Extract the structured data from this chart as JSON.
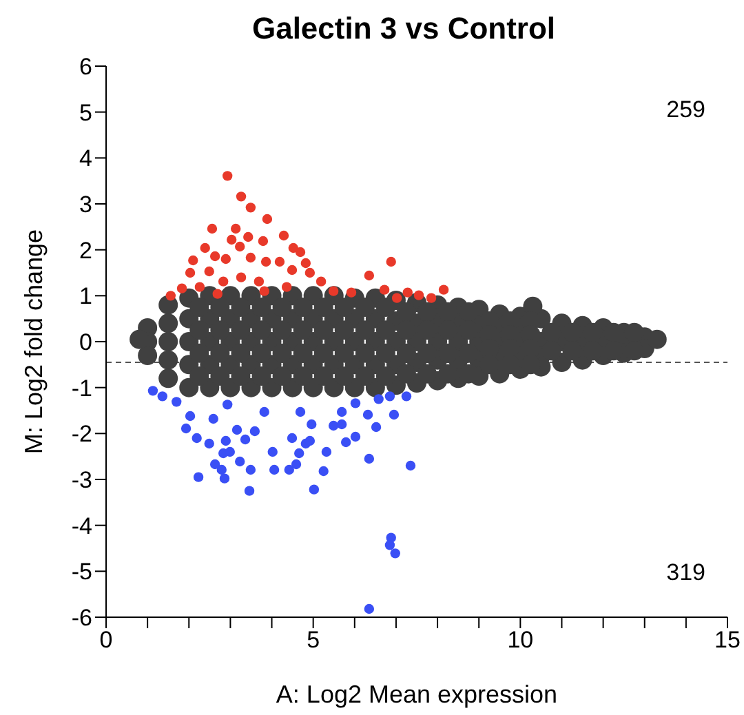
{
  "chart_data": {
    "type": "scatter",
    "title": "Galectin 3 vs Control",
    "xlabel": "A: Log2 Mean expression",
    "ylabel": "M: Log2 fold change",
    "xlim": [
      0,
      15
    ],
    "xticks": [
      0,
      {
        "value": 1,
        "label": null
      },
      {
        "value": 2,
        "label": null
      },
      {
        "value": 3,
        "label": null
      },
      {
        "value": 4,
        "label": null
      },
      5,
      {
        "value": 6,
        "label": null
      },
      {
        "value": 7,
        "label": null
      },
      {
        "value": 8,
        "label": null
      },
      {
        "value": 9,
        "label": null
      },
      10,
      {
        "value": 11,
        "label": null
      },
      {
        "value": 12,
        "label": null
      },
      {
        "value": 13,
        "label": null
      },
      {
        "value": 14,
        "label": null
      },
      15
    ],
    "ylim": [
      -6,
      6
    ],
    "yticks": [
      -6,
      -5,
      -4,
      -3,
      -2,
      -1,
      0,
      1,
      2,
      3,
      4,
      5,
      6
    ],
    "marker": "circle",
    "ref_lines": [
      {
        "axis": "y",
        "value": -0.45,
        "color": "#555555",
        "line_style": "dashed"
      }
    ],
    "annotations": [
      "259",
      "319"
    ],
    "series": [
      {
        "color": "#404040",
        "x": [
          1,
          1,
          1,
          1.5,
          1.5,
          1.5,
          1.5,
          1.5,
          2,
          2,
          2,
          2,
          2,
          2.5,
          2.5,
          2.5,
          2.5,
          2.5,
          3,
          3,
          3,
          3,
          3,
          3.5,
          3.5,
          3.5,
          3.5,
          3.5,
          4,
          4,
          4,
          4,
          4,
          4.5,
          4.5,
          4.5,
          4.5,
          4.5,
          5,
          5,
          5,
          5,
          5,
          5.5,
          5.5,
          5.5,
          5.5,
          5.5,
          6,
          6,
          6,
          6,
          6,
          6.5,
          6.5,
          6.5,
          6.5,
          6.5,
          7,
          7,
          7,
          7,
          7,
          7.5,
          7.5,
          7.5,
          7.5,
          7.5,
          8,
          8,
          8,
          8,
          8,
          8.5,
          8.5,
          8.5,
          8.5,
          8.5,
          9,
          9,
          9,
          9,
          9,
          9.5,
          9.5,
          9.5,
          9.5,
          9.5,
          10,
          10,
          10,
          10,
          10,
          10.5,
          10.5,
          10.5,
          10.5,
          11,
          11,
          11,
          11.5,
          11.5,
          11.5,
          12,
          12,
          12,
          12.5,
          12.5,
          12.5,
          13,
          13,
          13.3,
          0.8,
          10.3,
          2.25,
          2.25,
          2.25,
          2.25,
          2.75,
          2.75,
          2.75,
          2.75,
          3.25,
          3.25,
          3.25,
          3.25,
          3.75,
          3.75,
          3.75,
          3.75,
          4.25,
          4.25,
          4.25,
          4.25,
          4.75,
          4.75,
          4.75,
          4.75,
          5.25,
          5.25,
          5.25,
          5.25,
          5.75,
          5.75,
          5.75,
          5.75,
          6.25,
          6.25,
          6.25,
          6.25,
          6.75,
          6.75,
          6.75,
          6.75,
          7.25,
          7.25,
          7.25,
          7.25,
          7.75,
          7.75,
          7.75,
          7.75,
          8.25,
          8.25,
          8.25,
          8.25,
          8.75,
          8.75,
          8.75,
          8.75,
          9.25,
          9.25,
          9.25,
          9.25,
          9.75,
          9.75,
          9.75,
          9.75,
          10.25,
          10.25,
          10.25,
          10.25,
          10.75,
          10.75,
          11.25,
          11.25,
          11.75,
          11.75,
          12.25,
          12.25,
          12.75,
          12.75
        ],
        "values": [
          0.3,
          0,
          -0.3,
          0.8,
          0.4,
          0,
          -0.4,
          -0.8,
          0.95,
          0.5,
          0,
          -0.5,
          -1,
          1,
          0.5,
          0,
          -0.5,
          -1,
          1,
          0.5,
          0,
          -0.5,
          -1,
          1,
          0.5,
          0,
          -0.5,
          -1,
          1,
          0.5,
          0,
          -0.5,
          -1,
          1,
          0.5,
          0,
          -0.5,
          -1,
          1,
          0.5,
          0,
          -0.5,
          -1,
          1,
          0.5,
          0,
          -0.5,
          -1,
          0.95,
          0.5,
          0,
          -0.5,
          -1,
          0.95,
          0.5,
          0,
          -0.5,
          -1,
          0.9,
          0.45,
          0,
          -0.5,
          -0.95,
          0.85,
          0.4,
          0,
          -0.45,
          -0.9,
          0.8,
          0.4,
          0,
          -0.4,
          -0.85,
          0.75,
          0.4,
          0,
          -0.4,
          -0.8,
          0.7,
          0.35,
          0,
          -0.4,
          -0.75,
          0.6,
          0.3,
          0,
          -0.35,
          -0.7,
          0.55,
          0.3,
          0,
          -0.3,
          -0.6,
          0.5,
          0,
          -0.3,
          -0.55,
          0.4,
          0,
          -0.45,
          0.35,
          0,
          -0.4,
          0.3,
          0,
          -0.3,
          0.2,
          0,
          -0.25,
          0.1,
          -0.15,
          0.05,
          0.05,
          0.77,
          0.75,
          0.25,
          -0.25,
          -0.75,
          0.75,
          0.25,
          -0.25,
          -0.75,
          0.75,
          0.25,
          -0.25,
          -0.75,
          0.75,
          0.25,
          -0.25,
          -0.75,
          0.75,
          0.25,
          -0.25,
          -0.75,
          0.75,
          0.25,
          -0.25,
          -0.75,
          0.75,
          0.25,
          -0.25,
          -0.75,
          0.75,
          0.25,
          -0.25,
          -0.75,
          0.75,
          0.25,
          -0.25,
          -0.75,
          0.75,
          0.25,
          -0.25,
          -0.75,
          0.65,
          0.25,
          -0.25,
          -0.7,
          0.65,
          0.25,
          -0.25,
          -0.7,
          0.65,
          0.25,
          -0.25,
          -0.7,
          0.65,
          0.25,
          -0.25,
          -0.7,
          0.45,
          0.15,
          -0.15,
          -0.5,
          0.45,
          0.15,
          -0.15,
          -0.5,
          0.45,
          0.15,
          -0.15,
          -0.5,
          0.2,
          -0.2,
          0.2,
          -0.2,
          0.2,
          -0.2,
          0.2,
          -0.2,
          0.2,
          -0.2
        ]
      },
      {
        "color": "#e8392a",
        "x": [
          2.93,
          3.26,
          3.49,
          3.89,
          2.56,
          3.13,
          3.03,
          3.43,
          3.79,
          4.29,
          2.39,
          3.23,
          4.52,
          4.69,
          2.63,
          3.49,
          4.82,
          6.88,
          2.1,
          2.89,
          4.19,
          3.86,
          4.49,
          6.35,
          2.03,
          2.49,
          4.92,
          5.19,
          6.72,
          7.28,
          8.15,
          5.92,
          1.83,
          1.56,
          7.02,
          7.55,
          3.26,
          3.69,
          2.83,
          2.26,
          4.36,
          5.49,
          3.82,
          2.69,
          7.85
        ],
        "values": [
          3.61,
          3.16,
          2.92,
          2.67,
          2.46,
          2.46,
          2.22,
          2.28,
          2.19,
          2.31,
          2.04,
          2.07,
          2.04,
          1.95,
          1.86,
          1.83,
          1.71,
          1.74,
          1.77,
          1.8,
          1.74,
          1.74,
          1.56,
          1.44,
          1.5,
          1.53,
          1.5,
          1.31,
          1.13,
          1.07,
          1.13,
          1.07,
          1.16,
          1.0,
          0.95,
          1.01,
          1.4,
          1.31,
          1.31,
          1.19,
          1.19,
          1.1,
          1.1,
          1.04,
          0.95
        ]
      },
      {
        "color": "#3a4ff5",
        "x": [
          1.13,
          1.36,
          1.93,
          2.19,
          2.49,
          2.23,
          2.63,
          2.79,
          2.86,
          2.83,
          2.99,
          3.23,
          3.49,
          3.46,
          2.89,
          3.36,
          3.59,
          3.16,
          4.02,
          4.06,
          4.42,
          4.59,
          4.66,
          4.49,
          4.82,
          4.92,
          4.96,
          5.25,
          5.02,
          5.32,
          5.49,
          5.69,
          5.79,
          6.02,
          6.35,
          6.52,
          6.95,
          7.35,
          6.02,
          6.32,
          6.58,
          6.85,
          7.25,
          2.03,
          2.59,
          3.82,
          4.69,
          5.69,
          1.7,
          2.93,
          6.88,
          6.85,
          6.98,
          6.35
        ],
        "values": [
          -1.07,
          -1.19,
          -1.89,
          -2.1,
          -2.22,
          -2.95,
          -2.67,
          -2.79,
          -2.98,
          -2.43,
          -2.4,
          -2.61,
          -2.79,
          -3.25,
          -2.16,
          -2.13,
          -1.95,
          -1.92,
          -2.4,
          -2.79,
          -2.79,
          -2.67,
          -2.43,
          -2.1,
          -2.22,
          -2.16,
          -1.8,
          -2.82,
          -3.22,
          -2.4,
          -1.83,
          -1.8,
          -2.19,
          -2.07,
          -2.55,
          -1.86,
          -1.59,
          -2.7,
          -1.34,
          -1.59,
          -1.25,
          -1.19,
          -1.19,
          -1.62,
          -1.68,
          -1.53,
          -1.53,
          -1.53,
          -1.31,
          -1.37,
          -4.27,
          -4.43,
          -4.61,
          -5.82
        ]
      }
    ]
  }
}
